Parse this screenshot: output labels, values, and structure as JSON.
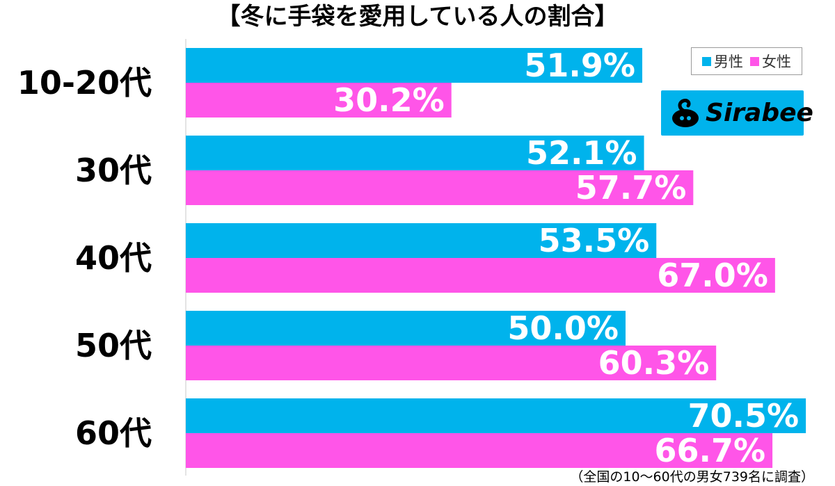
{
  "title": "【冬に手袋を愛用している人の割合】",
  "chart_data": {
    "type": "bar",
    "orientation": "horizontal",
    "categories": [
      "10-20代",
      "30代",
      "40代",
      "50代",
      "60代"
    ],
    "series": [
      {
        "name": "男性",
        "color": "#00b3ec",
        "values": [
          51.9,
          52.1,
          53.5,
          50.0,
          70.5
        ],
        "labels": [
          "51.9%",
          "52.1%",
          "53.5%",
          "50.0%",
          "70.5%"
        ]
      },
      {
        "name": "女性",
        "color": "#ff55e8",
        "values": [
          30.2,
          57.7,
          67.0,
          60.3,
          66.7
        ],
        "labels": [
          "30.2%",
          "57.7%",
          "67.0%",
          "60.3%",
          "66.7%"
        ]
      }
    ],
    "xlim": [
      0,
      75
    ],
    "grid": false,
    "legend_position": "top-right"
  },
  "legend": {
    "male": "男性",
    "female": "女性"
  },
  "logo": {
    "text": "Sirabee"
  },
  "footnote": "（全国の10〜60代の男女739名に調査）"
}
